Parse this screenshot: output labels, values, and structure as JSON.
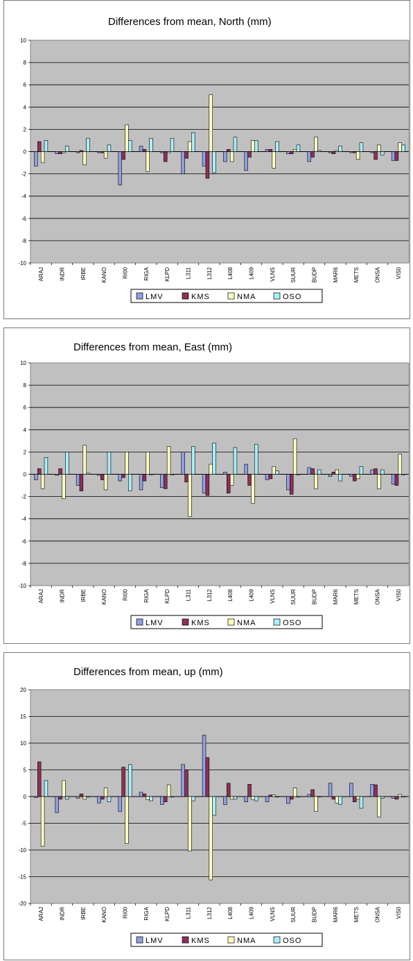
{
  "chart_data": [
    {
      "type": "bar",
      "title": "Differences from mean, North (mm)",
      "ylim": [
        -10,
        10
      ],
      "yticks": [
        "10",
        "8",
        "6",
        "4",
        "2",
        "0",
        "-2",
        "-4",
        "-6",
        "-8",
        "-10"
      ],
      "grid": true,
      "legend_position": "bottom",
      "categories": [
        "ARAJ",
        "INDR",
        "IRBE",
        "KANO",
        "RI00",
        "RIGA",
        "KLPD",
        "L311",
        "L312",
        "L408",
        "L409",
        "VLNS",
        "SUUR",
        "BUDP",
        "MAR6",
        "METS",
        "ONSA",
        "VIS0"
      ],
      "series": [
        {
          "name": "LMV",
          "values": [
            -1.3,
            -0.2,
            -0.1,
            -0.1,
            -3.0,
            0.5,
            -0.1,
            -2.0,
            -1.3,
            -0.9,
            -1.7,
            0.2,
            -0.2,
            -0.9,
            -0.1,
            -0.1,
            -0.1,
            -0.8
          ]
        },
        {
          "name": "KMS",
          "values": [
            0.9,
            -0.2,
            0.1,
            -0.1,
            -0.7,
            0.2,
            -0.9,
            -0.6,
            -2.4,
            0.2,
            -0.5,
            0.2,
            -0.2,
            -0.5,
            -0.2,
            -0.1,
            -0.7,
            -0.8
          ]
        },
        {
          "name": "NMA",
          "values": [
            -1.0,
            -0.1,
            -1.2,
            -0.6,
            2.4,
            -1.8,
            -0.1,
            0.9,
            5.1,
            -0.9,
            1.0,
            -1.5,
            0.2,
            1.3,
            0.1,
            -0.7,
            0.6,
            0.8
          ]
        },
        {
          "name": "OSO",
          "values": [
            1.0,
            0.5,
            1.2,
            0.6,
            1.0,
            1.2,
            1.2,
            1.7,
            -1.9,
            1.3,
            1.0,
            0.9,
            0.6,
            0.1,
            0.5,
            0.8,
            -0.3,
            0.6
          ]
        }
      ]
    },
    {
      "type": "bar",
      "title": "Differences from mean, East (mm)",
      "ylim": [
        -10,
        10
      ],
      "yticks": [
        "10",
        "8",
        "6",
        "4",
        "2",
        "0",
        "-2",
        "-4",
        "-6",
        "-8",
        "-10"
      ],
      "grid": true,
      "legend_position": "bottom",
      "categories": [
        "ARAJ",
        "INDR",
        "IRBE",
        "KANO",
        "RI00",
        "RIGA",
        "KLPD",
        "L311",
        "L312",
        "L408",
        "L409",
        "VLNS",
        "SUUR",
        "BUDP",
        "MAR6",
        "METS",
        "ONSA",
        "VIS0"
      ],
      "series": [
        {
          "name": "LMV",
          "values": [
            -0.5,
            -0.1,
            -1.0,
            -0.1,
            -0.6,
            -1.4,
            -1.2,
            2.0,
            -1.7,
            0.2,
            0.9,
            -0.5,
            -1.4,
            0.6,
            -0.2,
            -0.2,
            0.4,
            -0.9
          ]
        },
        {
          "name": "KMS",
          "values": [
            0.5,
            0.5,
            -1.5,
            -0.5,
            -0.3,
            -0.6,
            -1.3,
            -0.7,
            -1.9,
            -1.7,
            -1.0,
            -0.4,
            -1.8,
            0.5,
            0.2,
            -0.6,
            0.5,
            -1.0
          ]
        },
        {
          "name": "NMA",
          "values": [
            -1.3,
            -2.2,
            2.6,
            -1.4,
            2.0,
            2.0,
            2.5,
            -3.8,
            0.9,
            -1.0,
            -2.6,
            0.7,
            3.2,
            -1.3,
            0.4,
            -0.4,
            -1.3,
            1.8
          ]
        },
        {
          "name": "OSO",
          "values": [
            1.5,
            2.0,
            0.1,
            2.0,
            -1.5,
            0.0,
            0.0,
            2.5,
            2.8,
            2.4,
            2.7,
            0.3,
            0.0,
            0.4,
            -0.6,
            0.7,
            0.4,
            0.0
          ]
        }
      ]
    },
    {
      "type": "bar",
      "title": "Differences from mean, up (mm)",
      "ylim": [
        -20,
        20
      ],
      "yticks": [
        "20",
        "15",
        "10",
        "5",
        "0",
        "-5",
        "-10",
        "-15",
        "-20"
      ],
      "grid": true,
      "legend_position": "bottom",
      "categories": [
        "ARAJ",
        "INDR",
        "IRBE",
        "KANO",
        "RI00",
        "RIGA",
        "KLPD",
        "L311",
        "L312",
        "L408",
        "L409",
        "VLNS",
        "SUUR",
        "BUDP",
        "MAR6",
        "METS",
        "ONSA",
        "VIS0"
      ],
      "series": [
        {
          "name": "LMV",
          "values": [
            -0.2,
            -3.0,
            -0.3,
            -1.2,
            -2.8,
            0.8,
            -1.5,
            6.0,
            11.5,
            -1.5,
            -1.0,
            -1.0,
            -1.3,
            0.4,
            2.5,
            2.5,
            2.3,
            -0.3
          ]
        },
        {
          "name": "KMS",
          "values": [
            6.5,
            -0.5,
            0.5,
            -0.5,
            5.5,
            0.5,
            -1.0,
            5.0,
            7.3,
            2.5,
            2.3,
            0.3,
            -0.5,
            1.3,
            -0.5,
            -1.0,
            2.2,
            -0.5
          ]
        },
        {
          "name": "NMA",
          "values": [
            -9.3,
            3.0,
            -0.5,
            1.6,
            -8.8,
            -0.6,
            2.2,
            -10.2,
            -15.6,
            -0.5,
            -0.6,
            0.3,
            1.6,
            -2.8,
            -1.2,
            -0.5,
            -3.8,
            0.4
          ]
        },
        {
          "name": "OSO",
          "values": [
            3.0,
            -0.5,
            0.0,
            -1.0,
            6.0,
            -0.8,
            0.0,
            -0.8,
            -3.5,
            -0.5,
            -0.8,
            0.0,
            0.0,
            0.0,
            -1.5,
            -2.2,
            -0.3,
            0.0
          ]
        }
      ]
    }
  ],
  "colors": {
    "LMV": "#8f9fe0",
    "KMS": "#8f2f59",
    "NMA": "#fffdc0",
    "OSO": "#a8eef8",
    "plot_bg": "#c0c0c0"
  }
}
